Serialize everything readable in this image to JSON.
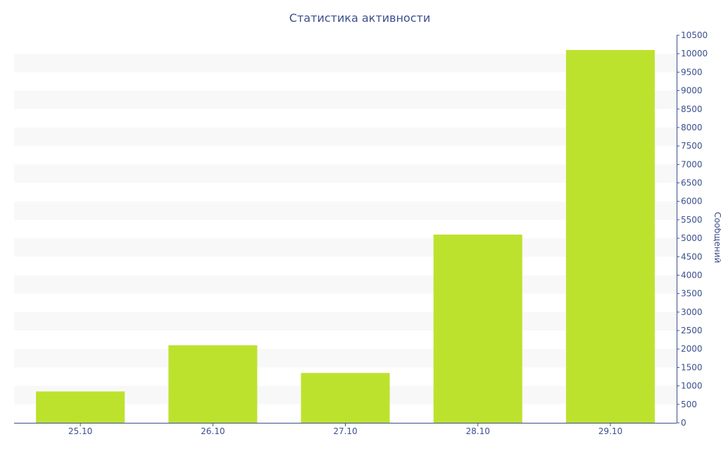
{
  "chart_data": {
    "type": "bar",
    "title": "Статистика активности",
    "categories": [
      "25.10",
      "26.10",
      "27.10",
      "28.10",
      "29.10"
    ],
    "values": [
      850,
      2100,
      1350,
      5100,
      10100
    ],
    "xlabel": "",
    "ylabel": "Сообщений",
    "ylim": [
      0,
      10500
    ],
    "ytick_step": 500,
    "y_axis_side": "right",
    "grid": "alternating horizontal bands",
    "legend": "none",
    "colors": {
      "bar": "#bde22e",
      "band": "#f8f8f8",
      "axis": "#3b4f8c",
      "text": "#3b4f8c"
    }
  }
}
